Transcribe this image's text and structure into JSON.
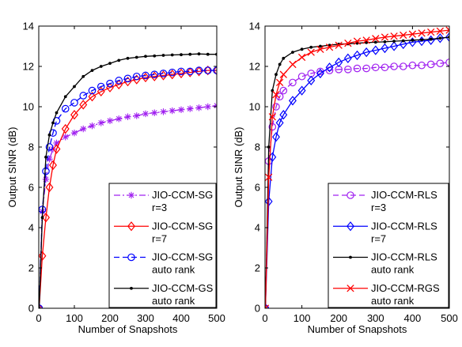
{
  "chart_data": [
    {
      "type": "line",
      "xlabel": "Number of Snapshots",
      "ylabel": "Output SINR (dB)",
      "xlim": [
        0,
        500
      ],
      "ylim": [
        0,
        14
      ],
      "xticks": [
        0,
        100,
        200,
        300,
        400,
        500
      ],
      "yticks": [
        0,
        2,
        4,
        6,
        8,
        10,
        12,
        14
      ],
      "grid": false,
      "legend_position": "lower-right",
      "x": [
        1,
        10,
        20,
        30,
        40,
        50,
        75,
        100,
        125,
        150,
        175,
        200,
        225,
        250,
        275,
        300,
        325,
        350,
        375,
        400,
        425,
        450,
        475,
        500
      ],
      "series": [
        {
          "name": "JIO-CCM-SG r=3",
          "legend_lines": [
            "JIO-CCM-SG",
            "r=3"
          ],
          "color": "#a020f0",
          "dash": "dashdot",
          "marker": "asterisk",
          "values": [
            0.0,
            4.8,
            6.4,
            7.4,
            7.9,
            8.2,
            8.5,
            8.7,
            8.9,
            9.05,
            9.2,
            9.3,
            9.4,
            9.5,
            9.55,
            9.65,
            9.7,
            9.75,
            9.8,
            9.85,
            9.9,
            9.95,
            10.0,
            10.05
          ]
        },
        {
          "name": "JIO-CCM-SG r=7",
          "legend_lines": [
            "JIO-CCM-SG",
            "r=7"
          ],
          "color": "#ff0000",
          "dash": "solid",
          "marker": "diamond",
          "values": [
            0.0,
            2.6,
            4.5,
            6.0,
            7.1,
            7.9,
            8.9,
            9.6,
            10.1,
            10.5,
            10.75,
            10.95,
            11.1,
            11.25,
            11.35,
            11.45,
            11.5,
            11.55,
            11.6,
            11.65,
            11.7,
            11.75,
            11.8,
            11.8
          ]
        },
        {
          "name": "JIO-CCM-SG auto rank",
          "legend_lines": [
            "JIO-CCM-SG",
            "auto rank"
          ],
          "color": "#0000ff",
          "dash": "dashed",
          "marker": "circle",
          "values": [
            0.0,
            4.9,
            6.8,
            8.0,
            8.7,
            9.3,
            9.9,
            10.2,
            10.55,
            10.8,
            11.0,
            11.15,
            11.3,
            11.4,
            11.5,
            11.55,
            11.6,
            11.65,
            11.7,
            11.75,
            11.75,
            11.8,
            11.8,
            11.8
          ]
        },
        {
          "name": "JIO-CCM-GS auto rank",
          "legend_lines": [
            "JIO-CCM-GS",
            "auto rank"
          ],
          "color": "#000000",
          "dash": "solid",
          "marker": "dot",
          "values": [
            0.0,
            4.5,
            7.5,
            8.6,
            9.2,
            9.7,
            10.5,
            11.0,
            11.5,
            11.8,
            12.0,
            12.15,
            12.3,
            12.4,
            12.45,
            12.5,
            12.52,
            12.55,
            12.57,
            12.58,
            12.6,
            12.62,
            12.6,
            12.6
          ]
        }
      ]
    },
    {
      "type": "line",
      "xlabel": "Number of Snapshots",
      "ylabel": "Output SINR (dB)",
      "xlim": [
        0,
        500
      ],
      "ylim": [
        0,
        14
      ],
      "xticks": [
        0,
        100,
        200,
        300,
        400,
        500
      ],
      "yticks": [
        0,
        2,
        4,
        6,
        8,
        10,
        12,
        14
      ],
      "grid": false,
      "legend_position": "lower-right",
      "x": [
        1,
        10,
        20,
        30,
        40,
        50,
        75,
        100,
        125,
        150,
        175,
        200,
        225,
        250,
        275,
        300,
        325,
        350,
        375,
        400,
        425,
        450,
        475,
        500
      ],
      "series": [
        {
          "name": "JIO-CCM-RLS r=3",
          "legend_lines": [
            "JIO-CCM-RLS",
            "r=3"
          ],
          "color": "#a020f0",
          "dash": "dashed",
          "marker": "circle",
          "values": [
            0.0,
            7.3,
            9.0,
            10.0,
            10.5,
            10.8,
            11.2,
            11.5,
            11.65,
            11.75,
            11.8,
            11.85,
            11.85,
            11.9,
            11.9,
            11.95,
            11.95,
            12.0,
            12.0,
            12.05,
            12.05,
            12.1,
            12.15,
            12.2
          ]
        },
        {
          "name": "JIO-CCM-RLS r=7",
          "legend_lines": [
            "JIO-CCM-RLS",
            "r=7"
          ],
          "color": "#0000ff",
          "dash": "solid",
          "marker": "diamond",
          "values": [
            0.0,
            5.3,
            7.5,
            8.5,
            9.2,
            9.6,
            10.3,
            10.8,
            11.3,
            11.65,
            11.95,
            12.2,
            12.4,
            12.55,
            12.7,
            12.8,
            12.9,
            13.0,
            13.1,
            13.2,
            13.25,
            13.3,
            13.4,
            13.45
          ]
        },
        {
          "name": "JIO-CCM-RLS auto rank",
          "legend_lines": [
            "JIO-CCM-RLS",
            "auto rank"
          ],
          "color": "#000000",
          "dash": "solid",
          "marker": "dot",
          "values": [
            0.0,
            8.0,
            10.8,
            11.6,
            12.1,
            12.4,
            12.7,
            12.85,
            12.95,
            13.0,
            13.05,
            13.1,
            13.12,
            13.15,
            13.18,
            13.2,
            13.22,
            13.25,
            13.27,
            13.3,
            13.32,
            13.35,
            13.4,
            13.45
          ]
        },
        {
          "name": "JIO-CCM-RGS auto rank",
          "legend_lines": [
            "JIO-CCM-RGS",
            "auto rank"
          ],
          "color": "#ff0000",
          "dash": "solid",
          "marker": "x",
          "values": [
            0.0,
            6.5,
            9.5,
            10.6,
            11.2,
            11.6,
            12.1,
            12.45,
            12.7,
            12.85,
            12.95,
            13.05,
            13.15,
            13.25,
            13.3,
            13.38,
            13.45,
            13.5,
            13.55,
            13.6,
            13.65,
            13.7,
            13.75,
            13.8
          ]
        }
      ]
    }
  ]
}
